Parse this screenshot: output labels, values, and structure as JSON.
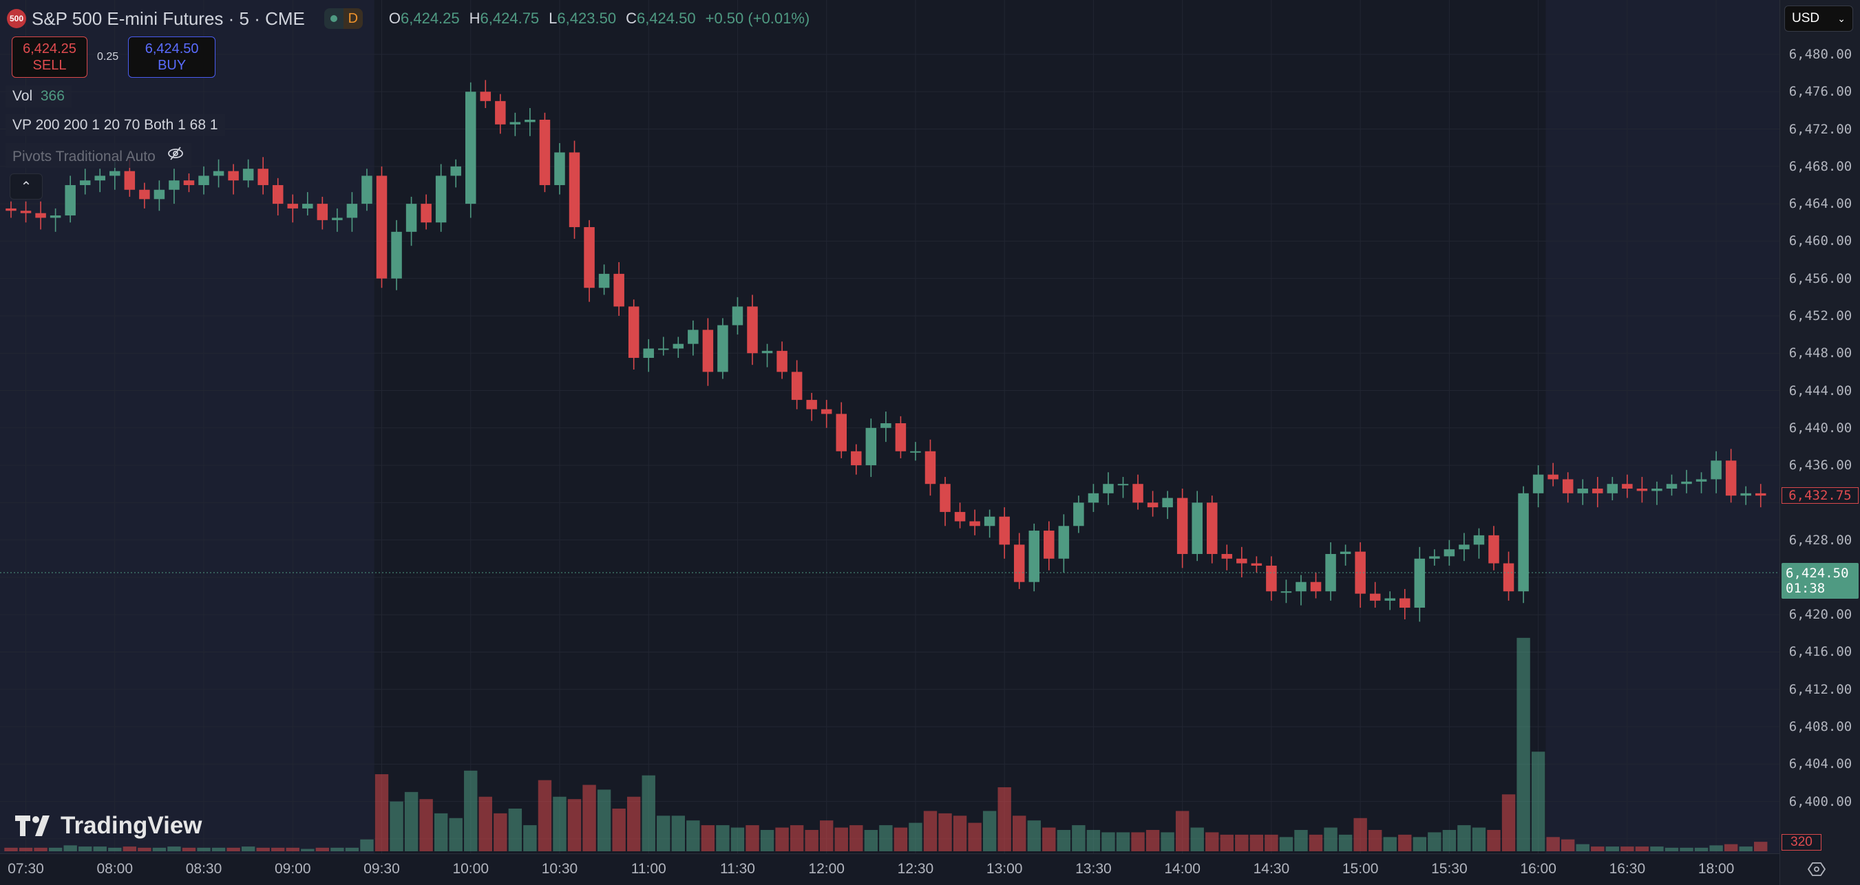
{
  "header": {
    "symbol_badge": "500",
    "title": "S&P 500 E-mini Futures · 5 · CME",
    "status_letter": "D",
    "ohlc": {
      "o_label": "O",
      "o": "6,424.25",
      "h_label": "H",
      "h": "6,424.75",
      "l_label": "L",
      "l": "6,423.50",
      "c_label": "C",
      "c": "6,424.50",
      "change": "+0.50 (+0.01%)"
    }
  },
  "trade": {
    "sell_price": "6,424.25",
    "sell_label": "SELL",
    "spread": "0.25",
    "buy_price": "6,424.50",
    "buy_label": "BUY"
  },
  "legend": {
    "vol_label": "Vol",
    "vol_value": "366",
    "vp": "VP 200 200 1 20 70 Both 1 68 1",
    "pivots": "Pivots Traditional Auto"
  },
  "currency": "USD",
  "brand": "TradingView",
  "colors": {
    "up": "#4f9a82",
    "down": "#d9484b",
    "bg": "#161a25",
    "session_bg": "#1b1f30",
    "grid": "#222632"
  },
  "price_axis": {
    "labels": [
      "6,480.00",
      "6,476.00",
      "6,472.00",
      "6,468.00",
      "6,464.00",
      "6,460.00",
      "6,456.00",
      "6,452.00",
      "6,448.00",
      "6,444.00",
      "6,440.00",
      "6,436.00",
      "6,428.00",
      "6,420.00",
      "6,416.00",
      "6,412.00",
      "6,408.00",
      "6,404.00",
      "6,400.00"
    ],
    "last_bar_price": "6,432.75",
    "current_price": "6,424.50",
    "countdown": "01:38",
    "volume_label": "320"
  },
  "time_axis": {
    "labels": [
      "07:30",
      "08:00",
      "08:30",
      "09:00",
      "09:30",
      "10:00",
      "10:30",
      "11:00",
      "11:30",
      "12:00",
      "12:30",
      "13:00",
      "13:30",
      "14:00",
      "14:30",
      "15:00",
      "15:30",
      "16:00",
      "16:30",
      "18:00"
    ]
  },
  "chart_data": {
    "type": "candlestick",
    "interval_min": 5,
    "sessions": [
      {
        "start": "07:25",
        "end": "16:55"
      },
      {
        "start": "18:00",
        "end": "18:15"
      }
    ],
    "extended_hours_shaded": [
      {
        "from": "07:25",
        "to": "09:25"
      },
      {
        "from": "16:05",
        "to": "18:15"
      }
    ],
    "ylim": [
      6396,
      6482
    ],
    "first_open": 6463.5,
    "close": [
      6463.25,
      6463,
      6462.5,
      6462.75,
      6466,
      6466.5,
      6467,
      6467.5,
      6465.5,
      6464.5,
      6465.5,
      6466.5,
      6466,
      6467,
      6467.5,
      6466.5,
      6467.75,
      6466,
      6464,
      6463.5,
      6464,
      6462.25,
      6462.5,
      6464,
      6467,
      6456,
      6461,
      6464,
      6462,
      6467,
      6468,
      6476,
      6475,
      6472.5,
      6472.75,
      6473,
      6466,
      6469.5,
      6461.5,
      6455,
      6456.5,
      6453,
      6447.5,
      6448.5,
      6448.5,
      6449,
      6450.5,
      6446,
      6451,
      6453,
      6448,
      6448.25,
      6446,
      6443,
      6442,
      6441.5,
      6437.5,
      6436,
      6440,
      6440.5,
      6437.5,
      6437.5,
      6434,
      6431,
      6430,
      6429.5,
      6430.5,
      6427.5,
      6423.5,
      6429,
      6426,
      6429.5,
      6432,
      6433,
      6434,
      6434,
      6432,
      6431.5,
      6432.5,
      6426.5,
      6432,
      6426.5,
      6426,
      6425.5,
      6425.25,
      6422.5,
      6422.5,
      6423.5,
      6422.5,
      6426.5,
      6426.75,
      6422.25,
      6421.5,
      6421.75,
      6420.75,
      6426,
      6426.25,
      6427,
      6427.5,
      6428.5,
      6425.5,
      6422.5,
      6433,
      6435,
      6434.5,
      6433,
      6433.5,
      6433,
      6434,
      6433.5,
      6433.25,
      6433.5,
      6434,
      6434.25,
      6434.5,
      6436.5,
      6432.75,
      6433,
      6432.75
    ],
    "volume": [
      120,
      120,
      120,
      120,
      200,
      160,
      160,
      120,
      160,
      120,
      120,
      160,
      120,
      120,
      120,
      120,
      160,
      120,
      120,
      120,
      80,
      120,
      120,
      120,
      400,
      2600,
      1680,
      2000,
      1760,
      1280,
      1120,
      2720,
      1840,
      1280,
      1440,
      880,
      2400,
      1840,
      1760,
      2240,
      2080,
      1440,
      1840,
      2560,
      1200,
      1200,
      1040,
      880,
      880,
      800,
      880,
      720,
      800,
      880,
      720,
      1040,
      800,
      880,
      720,
      880,
      800,
      960,
      1360,
      1280,
      1200,
      960,
      1360,
      2160,
      1200,
      1040,
      800,
      720,
      880,
      720,
      640,
      640,
      640,
      720,
      640,
      1360,
      800,
      640,
      560,
      560,
      560,
      560,
      480,
      720,
      560,
      800,
      560,
      1120,
      720,
      480,
      560,
      480,
      640,
      720,
      880,
      800,
      720,
      1920,
      7200,
      3360,
      480,
      400,
      240,
      160,
      160,
      160,
      160,
      160,
      120,
      120,
      120,
      200,
      240,
      160,
      320
    ],
    "current_price": 6424.5
  }
}
